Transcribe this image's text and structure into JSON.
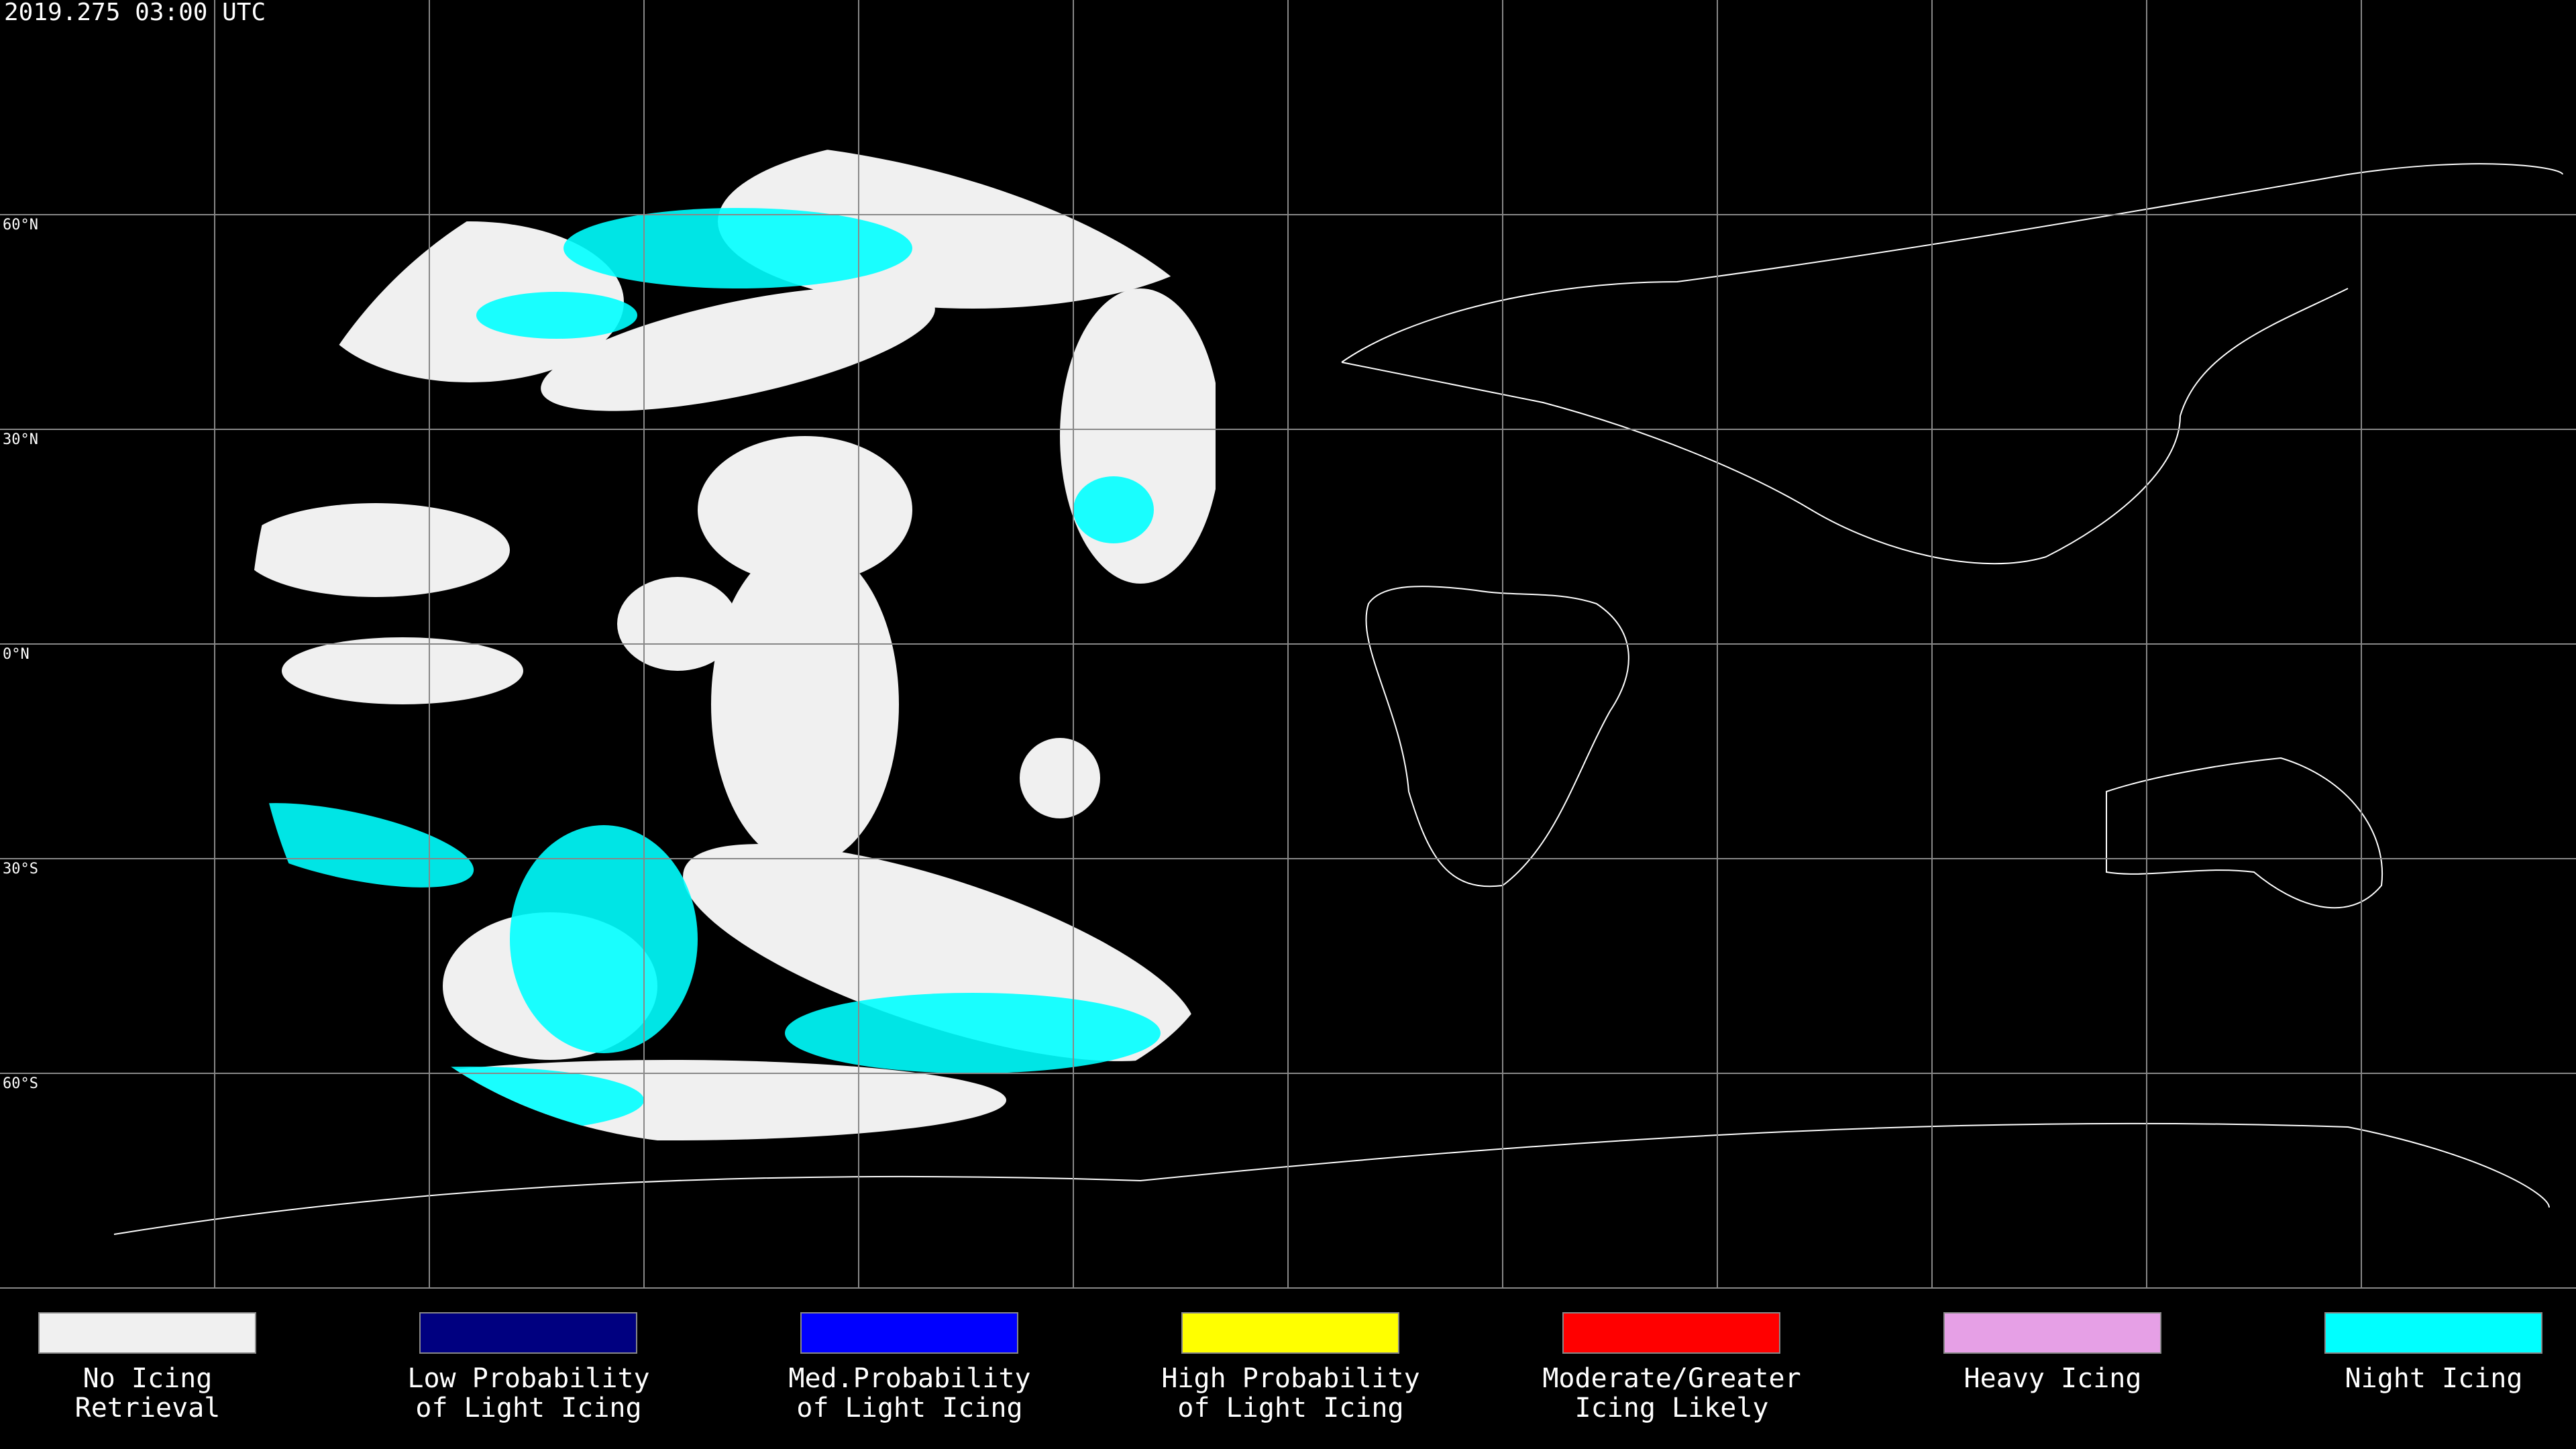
{
  "header": {
    "title": "2019.275 03:00 UTC"
  },
  "latitude_labels": [
    "60°N",
    "30°N",
    "0°N",
    "30°S",
    "60°S"
  ],
  "legend": [
    {
      "lines": [
        "No Icing",
        "Retrieval"
      ],
      "color": "#f0f0f0"
    },
    {
      "lines": [
        "Low Probability",
        "of Light Icing"
      ],
      "color": "#000080"
    },
    {
      "lines": [
        "Med.Probability",
        "of Light Icing"
      ],
      "color": "#0000ff"
    },
    {
      "lines": [
        "High Probability",
        "of Light Icing"
      ],
      "color": "#ffff00"
    },
    {
      "lines": [
        "Moderate/Greater",
        "Icing Likely"
      ],
      "color": "#ff0000"
    },
    {
      "lines": [
        "Heavy Icing"
      ],
      "color": "#e6a0e6"
    },
    {
      "lines": [
        "Night Icing"
      ],
      "color": "#00ffff"
    }
  ]
}
